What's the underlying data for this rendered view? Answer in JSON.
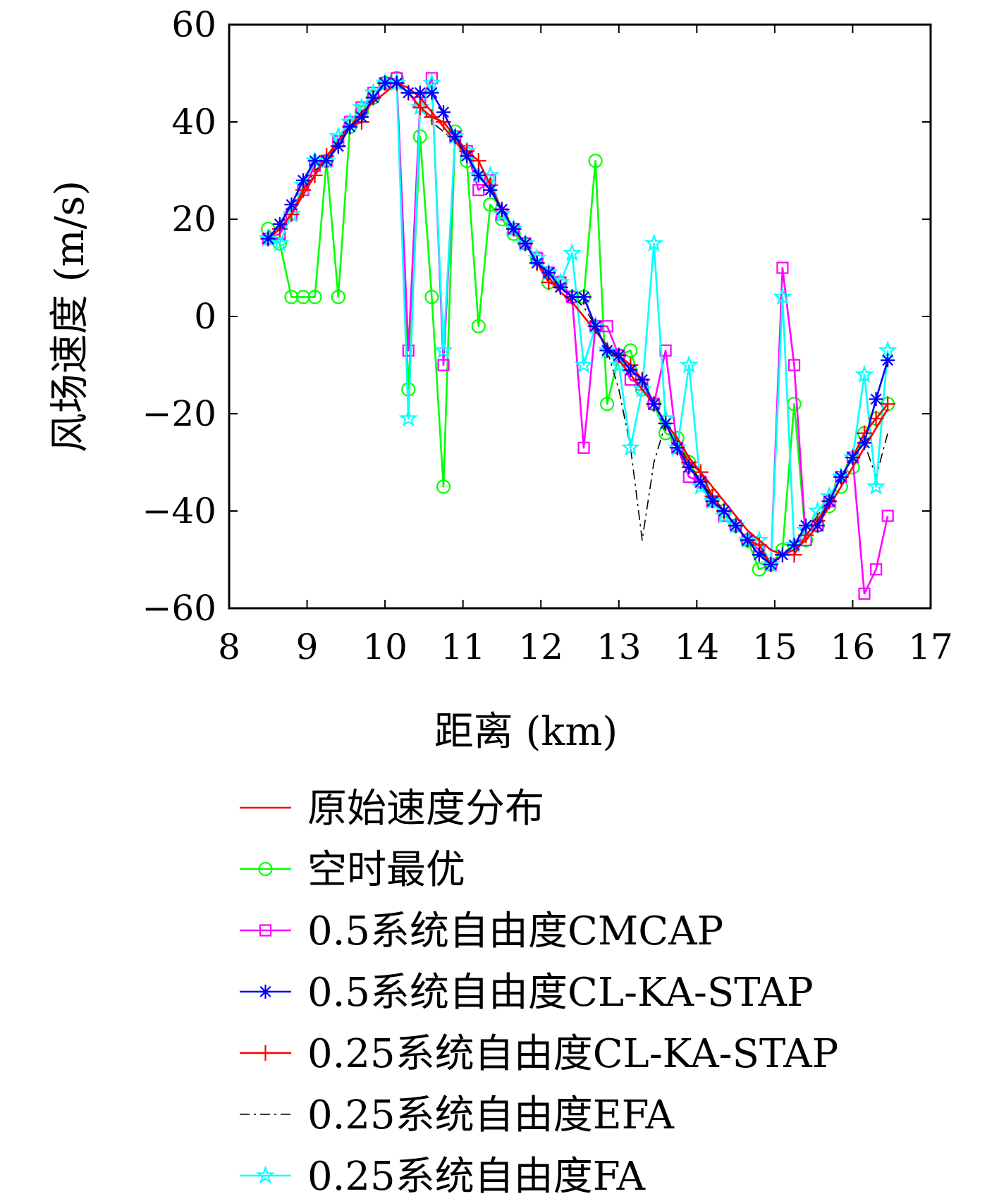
{
  "chart_data": {
    "type": "line",
    "xlabel": "距离 (km)",
    "ylabel": "风场速度 (m/s)",
    "xlim": [
      8,
      17
    ],
    "ylim": [
      -60,
      60
    ],
    "xticks": [
      8,
      9,
      10,
      11,
      12,
      13,
      14,
      15,
      16,
      17
    ],
    "yticks": [
      60,
      40,
      20,
      0,
      -20,
      -40,
      -60
    ],
    "xtick_labels": [
      "8",
      "9",
      "10",
      "11",
      "12",
      "13",
      "14",
      "15",
      "16",
      "17"
    ],
    "ytick_labels": [
      "60",
      "40",
      "20",
      "0",
      "−20",
      "−40",
      "−60"
    ],
    "grid": false,
    "legend_position": "below",
    "x": [
      8.5,
      8.65,
      8.8,
      8.95,
      9.1,
      9.25,
      9.4,
      9.55,
      9.7,
      9.85,
      10.0,
      10.15,
      10.3,
      10.45,
      10.6,
      10.75,
      10.9,
      11.05,
      11.2,
      11.35,
      11.5,
      11.65,
      11.8,
      11.95,
      12.1,
      12.25,
      12.4,
      12.55,
      12.7,
      12.85,
      13.0,
      13.15,
      13.3,
      13.45,
      13.6,
      13.75,
      13.9,
      14.05,
      14.2,
      14.35,
      14.5,
      14.65,
      14.8,
      14.95,
      15.1,
      15.25,
      15.4,
      15.55,
      15.7,
      15.85,
      16.0,
      16.15,
      16.3,
      16.45
    ],
    "series": [
      {
        "name": "原始速度分布",
        "color": "#ff0000",
        "marker": "none",
        "dash": "solid",
        "values": [
          16,
          18,
          21,
          25,
          29,
          33,
          36,
          39,
          42,
          44,
          46,
          48,
          47,
          45,
          42,
          39,
          36,
          33,
          29,
          26,
          22,
          18,
          15,
          11,
          8,
          5,
          3,
          0,
          -3,
          -6,
          -9,
          -12,
          -15,
          -18,
          -22,
          -25,
          -29,
          -32,
          -35,
          -38,
          -41,
          -44,
          -46,
          -48,
          -49,
          -48,
          -46,
          -43,
          -39,
          -35,
          -31,
          -27,
          -23,
          -19
        ]
      },
      {
        "name": "空时最优",
        "color": "#00ff00",
        "marker": "circle",
        "dash": "solid",
        "values": [
          18,
          15,
          4,
          4,
          4,
          32,
          4,
          39,
          42,
          45,
          48,
          49,
          -15,
          37,
          4,
          -35,
          38,
          32,
          -2,
          23,
          20,
          17,
          15,
          12,
          7,
          7,
          4,
          4,
          32,
          -18,
          -8,
          -7,
          -15,
          -18,
          -24,
          -25,
          -30,
          -34,
          -37,
          -40,
          -43,
          -46,
          -52,
          -51,
          -48,
          -18,
          -46,
          -43,
          -39,
          -35,
          -31,
          -24,
          -21,
          -18
        ]
      },
      {
        "name": "0.5系统自由度CMCAP",
        "color": "#ff00ff",
        "marker": "square",
        "dash": "solid",
        "values": [
          16,
          17,
          21,
          26,
          31,
          32,
          36,
          40,
          43,
          46,
          48,
          49,
          -7,
          44,
          49,
          -10,
          37,
          34,
          26,
          28,
          21,
          18,
          15,
          12,
          9,
          7,
          4,
          -27,
          -2,
          -2,
          -8,
          -13,
          -14,
          -18,
          -7,
          -27,
          -33,
          -34,
          -38,
          -41,
          -43,
          -46,
          -48,
          -51,
          10,
          -10,
          -46,
          -43,
          -38,
          -33,
          -29,
          -57,
          -52,
          -41
        ]
      },
      {
        "name": "0.5系统自由度CL-KA-STAP",
        "color": "#0000ff",
        "marker": "asterisk",
        "dash": "solid",
        "values": [
          16,
          19,
          23,
          28,
          32,
          32,
          35,
          39,
          41,
          45,
          48,
          48,
          46,
          46,
          46,
          42,
          37,
          33,
          29,
          26,
          22,
          18,
          15,
          11,
          9,
          6,
          4,
          4,
          -2,
          -7,
          -8,
          -11,
          -13,
          -18,
          -22,
          -27,
          -31,
          -34,
          -38,
          -40,
          -43,
          -46,
          -49,
          -51,
          -49,
          -47,
          -43,
          -43,
          -38,
          -33,
          -29,
          -26,
          -17,
          -9
        ]
      },
      {
        "name": "0.25系统自由度CL-KA-STAP",
        "color": "#ff0000",
        "marker": "plus",
        "dash": "solid",
        "values": [
          16,
          18,
          21,
          26,
          29,
          33,
          35,
          39,
          40,
          45,
          48,
          48,
          46,
          43,
          41,
          40,
          37,
          34,
          32,
          27,
          22,
          18,
          15,
          11,
          7,
          6,
          4,
          4,
          -2,
          -7,
          -8,
          -10,
          -13,
          -18,
          -22,
          -27,
          -30,
          -32,
          -37,
          -40,
          -43,
          -46,
          -47,
          -51,
          -49,
          -49,
          -45,
          -42,
          -38,
          -33,
          -29,
          -24,
          -21,
          -18
        ]
      },
      {
        "name": "0.25系统自由度EFA",
        "color": "#000000",
        "marker": "none",
        "dash": "dashdot",
        "values": [
          16,
          18,
          21,
          26,
          30,
          32,
          36,
          40,
          43,
          46,
          48,
          48,
          46,
          43,
          40,
          38,
          36,
          33,
          29,
          26,
          22,
          18,
          15,
          12,
          8,
          6,
          4,
          2,
          -2,
          -7,
          -15,
          -27,
          -46,
          -30,
          -22,
          -26,
          -30,
          -34,
          -37,
          -40,
          -43,
          -46,
          -48,
          -51,
          -49,
          -47,
          -44,
          -41,
          -37,
          -33,
          -29,
          -26,
          -33,
          -24
        ]
      },
      {
        "name": "0.25系统自由度FA",
        "color": "#00ffff",
        "marker": "star",
        "dash": "solid",
        "values": [
          16,
          15,
          21,
          27,
          32,
          32,
          37,
          40,
          43,
          46,
          48,
          48,
          -21,
          43,
          48,
          -7,
          37,
          34,
          29,
          29,
          21,
          18,
          15,
          12,
          9,
          7,
          13,
          -10,
          -2,
          -7,
          -10,
          -27,
          -15,
          15,
          -21,
          -27,
          -10,
          -35,
          -38,
          -41,
          -43,
          -46,
          -46,
          -51,
          4,
          -47,
          -44,
          -40,
          -37,
          -33,
          -29,
          -12,
          -35,
          -7
        ]
      }
    ]
  }
}
